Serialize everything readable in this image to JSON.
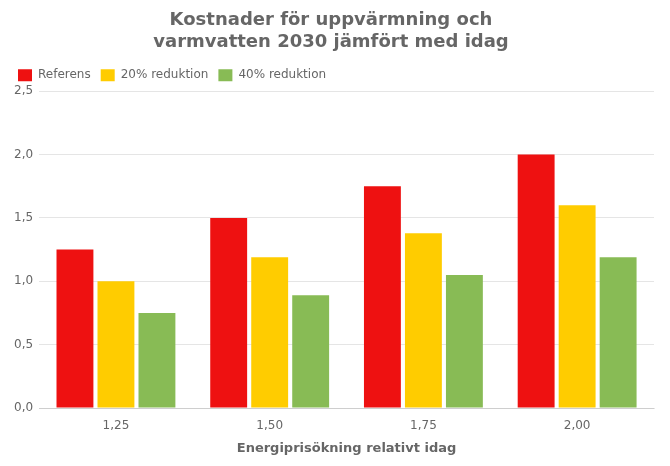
{
  "chart_data": {
    "type": "bar",
    "title": "Kostnader för uppvärmning och\nvarmvatten 2030 jämfört med idag",
    "xlabel": "Energiprisökning relativt idag",
    "categories": [
      "1,25",
      "1,50",
      "1,75",
      "2,00"
    ],
    "series": [
      {
        "name": "Referens",
        "color": "#EE1111",
        "values": [
          1.25,
          1.5,
          1.75,
          2.0
        ]
      },
      {
        "name": "20% reduktion",
        "color": "#FFCC00",
        "values": [
          1.0,
          1.19,
          1.38,
          1.6
        ]
      },
      {
        "name": "40% reduktion",
        "color": "#88BB55",
        "values": [
          0.75,
          0.89,
          1.05,
          1.19
        ]
      }
    ],
    "ylim": [
      0,
      2.5
    ],
    "yticks": [
      {
        "value": 0,
        "label": "0,0"
      },
      {
        "value": 0.5,
        "label": "0,5"
      },
      {
        "value": 1,
        "label": "1,0"
      },
      {
        "value": 1.5,
        "label": "1,5"
      },
      {
        "value": 2,
        "label": "2,0"
      },
      {
        "value": 2.5,
        "label": "2,5"
      }
    ],
    "grid": true,
    "legend": "upper left"
  }
}
